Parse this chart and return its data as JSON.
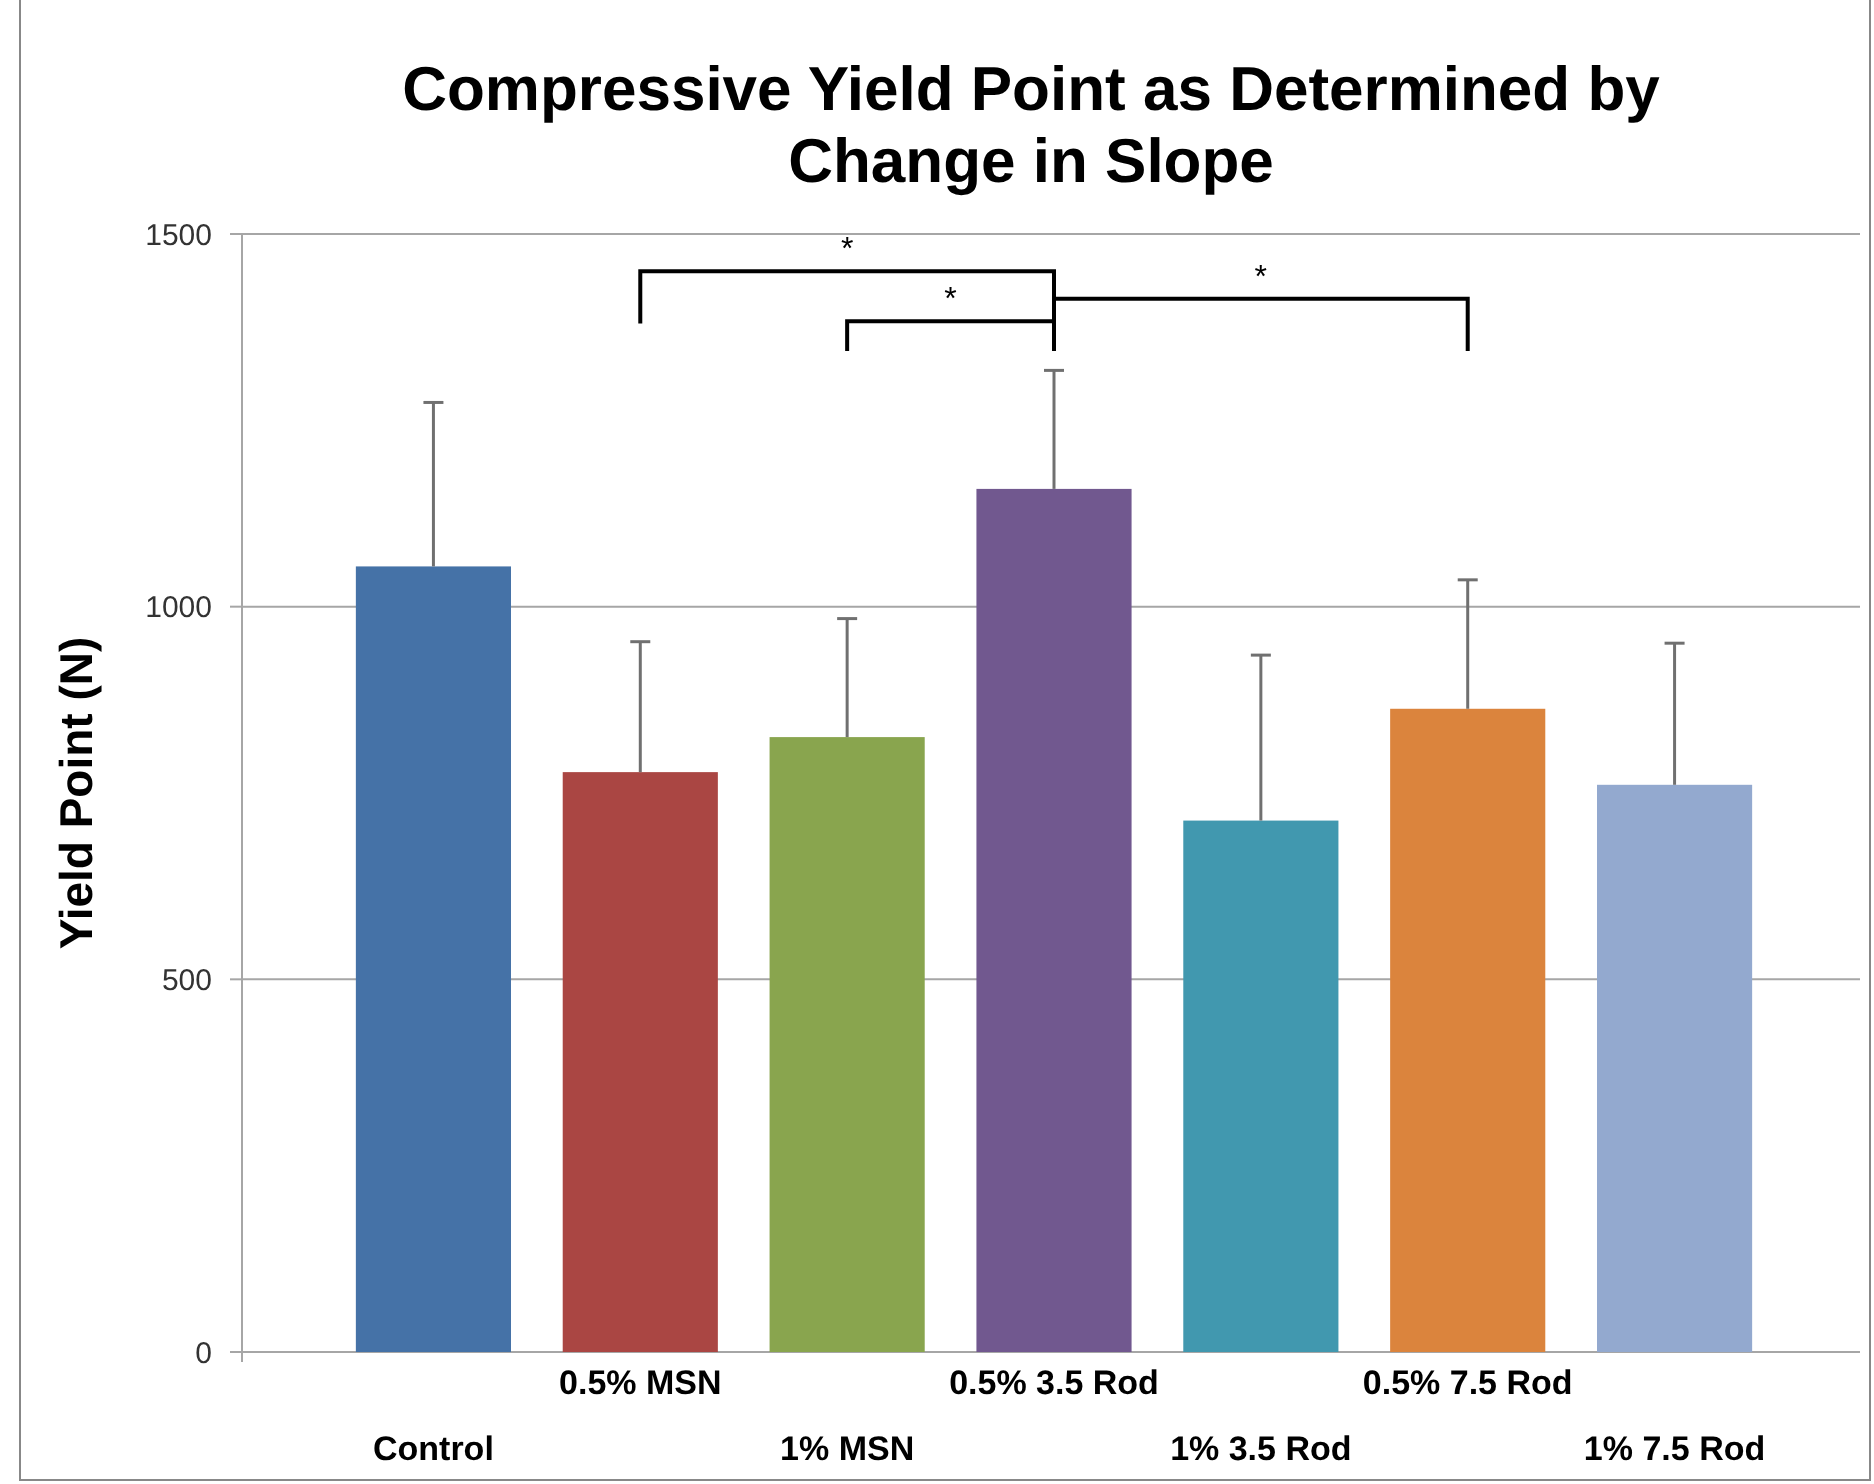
{
  "chart_data": {
    "type": "bar",
    "title": "Compressive Yield Point as Determined by Change in Slope",
    "ylabel": "Yield Point (N)",
    "categories": [
      "Control",
      "0.5% MSN",
      "1% MSN",
      "0.5% 3.5 Rod",
      "1% 3.5 Rod",
      "0.5% 7.5 Rod",
      "1% 7.5 Rod"
    ],
    "values": [
      1054,
      778,
      825,
      1158,
      713,
      863,
      761
    ],
    "colors": [
      "#4572a7",
      "#aa4643",
      "#89a54e",
      "#71588f",
      "#4198af",
      "#db843d",
      "#93a9cf"
    ],
    "errors": [
      [
        1054,
        1274
      ],
      [
        778,
        953
      ],
      [
        825,
        984
      ],
      [
        1158,
        1317
      ],
      [
        713,
        935
      ],
      [
        863,
        1036
      ],
      [
        761,
        951
      ]
    ],
    "ylim": [
      0,
      1500
    ],
    "yticks": [
      0,
      500,
      1000,
      1500
    ],
    "grid": "y",
    "annotations": [
      "*",
      "*",
      "*"
    ]
  }
}
